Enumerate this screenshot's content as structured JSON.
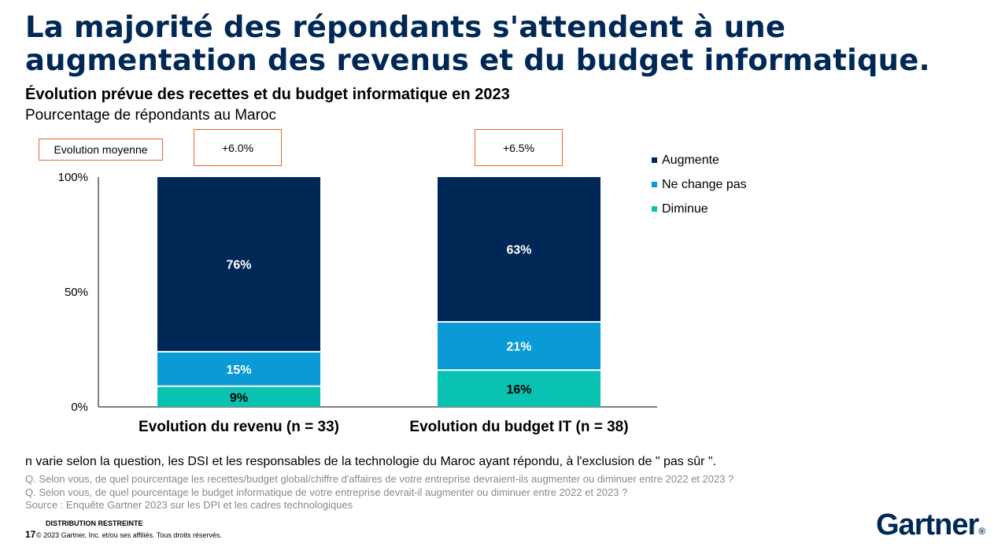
{
  "header": {
    "title": "La majorité des répondants s'attendent à une augmentation des revenus et du budget informatique."
  },
  "chart_data": {
    "type": "bar",
    "stacked": true,
    "title": "Évolution prévue des recettes et du budget informatique en 2023",
    "subtitle": "Pourcentage de répondants au Maroc",
    "categories": [
      "Evolution du revenu (n = 33)",
      "Evolution du budget IT (n = 38)"
    ],
    "series": [
      {
        "name": "Diminue",
        "values": [
          9,
          16
        ],
        "labels": [
          "9%",
          "16%"
        ],
        "color": "#0ac2b2"
      },
      {
        "name": "Ne change pas",
        "values": [
          15,
          21
        ],
        "labels": [
          "15%",
          "21%"
        ],
        "color": "#0a9ad6"
      },
      {
        "name": "Augmente",
        "values": [
          76,
          63
        ],
        "labels": [
          "76%",
          "63%"
        ],
        "color": "#002856"
      }
    ],
    "yticks": [
      "100%",
      "50%",
      "0%"
    ],
    "ylim": [
      0,
      100
    ],
    "avg_label": "Evolution moyenne",
    "averages": [
      "+6.0%",
      "+6.5%"
    ],
    "legend_order": [
      "Augmente",
      "Ne change pas",
      "Diminue"
    ],
    "legend_position": "right"
  },
  "footer": {
    "note": "n varie selon la question, les DSI et les responsables de la technologie du Maroc ayant répondu, à l'exclusion de \" pas sûr \".",
    "q1": "Q. Selon vous, de quel pourcentage les recettes/budget global/chiffre d'affaires de votre entreprise devraient-ils augmenter ou diminuer entre 2022 et 2023 ?",
    "q2": "Q. Selon vous, de quel pourcentage le budget informatique de votre entreprise devrait-il augmenter ou diminuer entre 2022 et 2023 ?",
    "source": "Source : Enquête Gartner 2023 sur les DPI et les cadres technologiques",
    "distribution": "DISTRIBUTION RESTREINTE",
    "page_number": "17",
    "copyright": "© 2023 Gartner, Inc. et/ou ses affiliés. Tous droits réservés.",
    "logo_text": "Gartner",
    "logo_mark": "®"
  }
}
